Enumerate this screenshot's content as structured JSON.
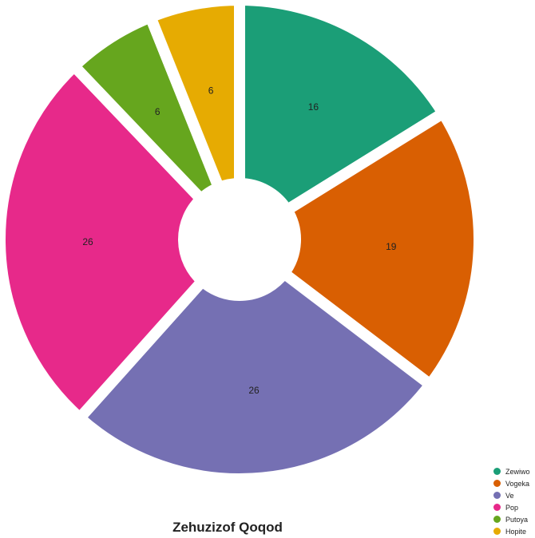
{
  "chart_data": {
    "type": "pie",
    "title": "Zehuzizof Qoqod",
    "categories": [
      "Zewiwo",
      "Vogeka",
      "Ve",
      "Pop",
      "Putoya",
      "Hopite"
    ],
    "values": [
      16,
      19,
      26,
      26,
      6,
      6
    ],
    "colors": [
      "#1b9e77",
      "#d95f02",
      "#7570b3",
      "#e7298a",
      "#66a61e",
      "#e6ab02"
    ],
    "legend_position": "bottom-right",
    "donut": true
  }
}
